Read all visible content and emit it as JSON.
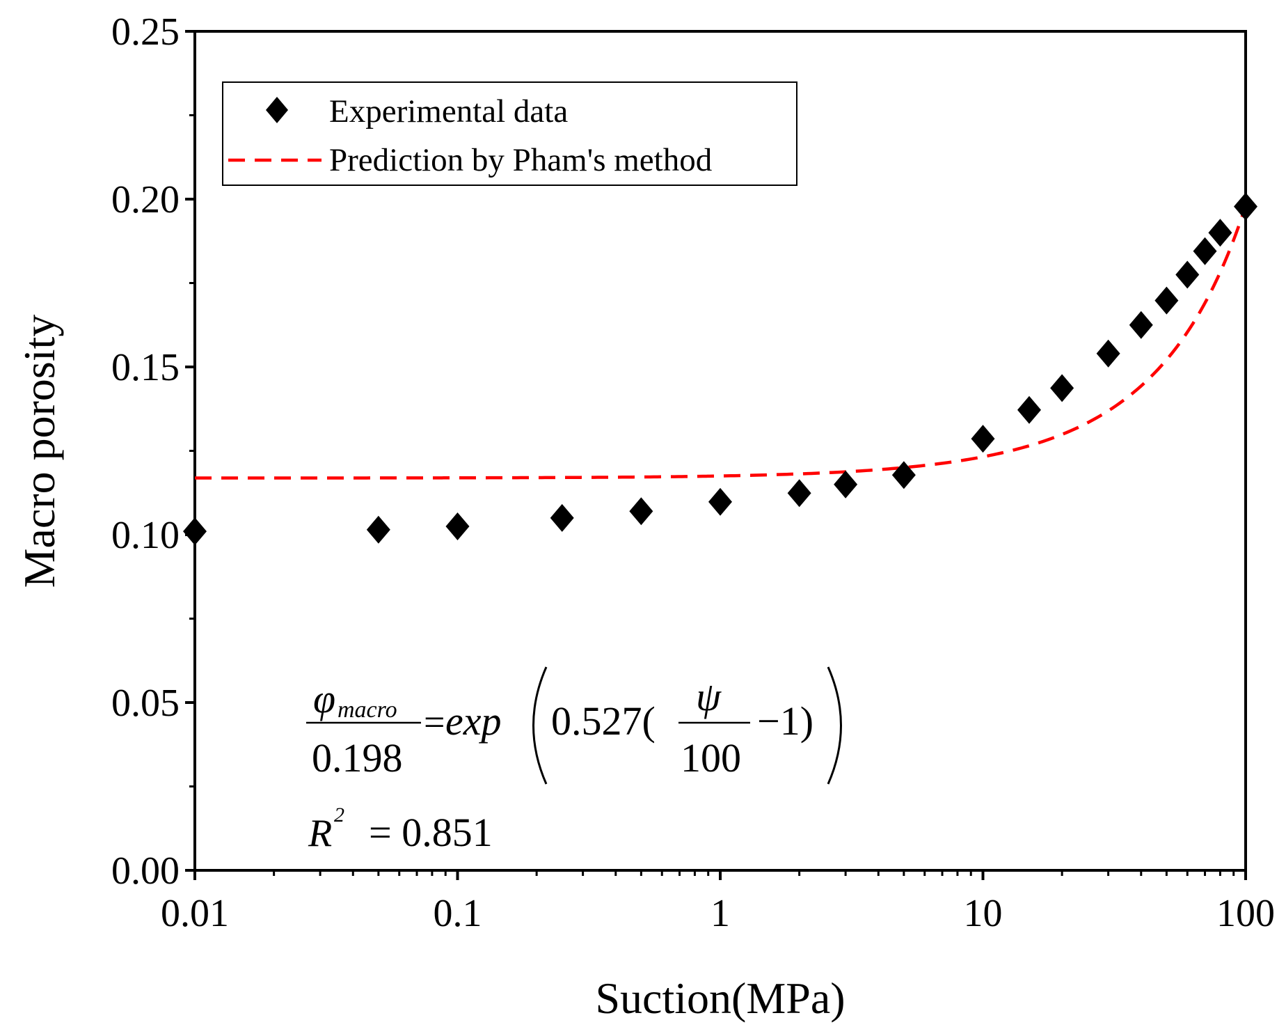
{
  "chart_data": {
    "type": "scatter",
    "title": "",
    "xlabel": "Suction(MPa)",
    "ylabel": "Macro porosity",
    "xscale": "log",
    "xlim": [
      0.01,
      100
    ],
    "ylim": [
      0.0,
      0.25
    ],
    "xticks": [
      0.01,
      0.1,
      1,
      10,
      100
    ],
    "xtick_labels": [
      "0.01",
      "0.1",
      "1",
      "10",
      "100"
    ],
    "yticks": [
      0.0,
      0.05,
      0.1,
      0.15,
      0.2,
      0.25
    ],
    "ytick_labels": [
      "0.00",
      "0.05",
      "0.10",
      "0.15",
      "0.20",
      "0.25"
    ],
    "grid": false,
    "legend_position": "top-left",
    "series": [
      {
        "name": "Experimental data",
        "kind": "scatter",
        "marker": "diamond",
        "color": "#000000",
        "x": [
          0.01,
          0.05,
          0.1,
          0.25,
          0.5,
          1,
          2,
          3,
          5,
          10,
          15,
          20,
          30,
          40,
          50,
          60,
          70,
          80,
          100
        ],
        "y": [
          0.101,
          0.1015,
          0.1025,
          0.105,
          0.107,
          0.1098,
          0.1124,
          0.115,
          0.1178,
          0.1286,
          0.1372,
          0.1437,
          0.154,
          0.1625,
          0.1698,
          0.1775,
          0.1845,
          0.19,
          0.1978
        ]
      },
      {
        "name": "Prediction by Pham's method",
        "kind": "line",
        "style": "dashed",
        "color": "#ff0000",
        "model": {
          "phi_ref": 0.198,
          "k": 0.527,
          "psi_ref": 100
        }
      }
    ],
    "annotations": {
      "eq_numerator": "φ",
      "eq_numerator_sub": "macro",
      "eq_denominator": "0.198",
      "eq_equals": "=",
      "eq_func": "exp",
      "eq_coef": "0.527(",
      "eq_inner_num": "ψ",
      "eq_inner_den": "100",
      "eq_tail": "−1)",
      "r2_symbol": "R",
      "r2_exp": "2",
      "r2_value": "= 0.851"
    }
  }
}
